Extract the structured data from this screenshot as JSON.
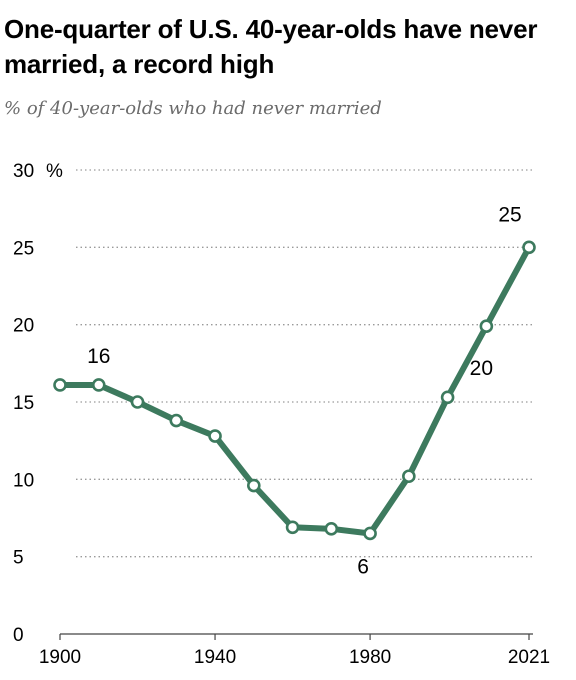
{
  "chart_data": {
    "type": "line",
    "title": "One-quarter of U.S. 40-year-olds have never married, a record high",
    "subtitle": "% of 40-year-olds who had never married",
    "x_ticks": [
      {
        "value": 1900,
        "label": "1900"
      },
      {
        "value": 1940,
        "label": "1940"
      },
      {
        "value": 1980,
        "label": "1980"
      },
      {
        "value": 2021,
        "label": "2021"
      }
    ],
    "y_ticks": [
      {
        "value": 0,
        "label": "0"
      },
      {
        "value": 5,
        "label": "5"
      },
      {
        "value": 10,
        "label": "10"
      },
      {
        "value": 15,
        "label": "15"
      },
      {
        "value": 20,
        "label": "20"
      },
      {
        "value": 25,
        "label": "25"
      },
      {
        "value": 30,
        "label": "30"
      }
    ],
    "y_unit": "%",
    "xlim": [
      1900,
      2021
    ],
    "ylim": [
      0,
      30
    ],
    "grid": true,
    "series": [
      {
        "color": "#3d7a5e",
        "x": [
          1900,
          1910,
          1920,
          1930,
          1940,
          1950,
          1960,
          1970,
          1980,
          1990,
          2000,
          2010,
          2021
        ],
        "y": [
          16.1,
          16.1,
          15.0,
          13.8,
          12.8,
          9.6,
          6.9,
          6.8,
          6.5,
          10.2,
          15.3,
          19.9,
          25.0
        ]
      }
    ],
    "data_labels": [
      {
        "x": 1910,
        "y": 16.1,
        "text": "16",
        "position": "above"
      },
      {
        "x": 1980,
        "y": 6.5,
        "text": "6",
        "position": "below"
      },
      {
        "x": 2010,
        "y": 19.9,
        "text": "20",
        "position": "below-right"
      },
      {
        "x": 2021,
        "y": 25.0,
        "text": "25",
        "position": "above-left"
      }
    ]
  }
}
